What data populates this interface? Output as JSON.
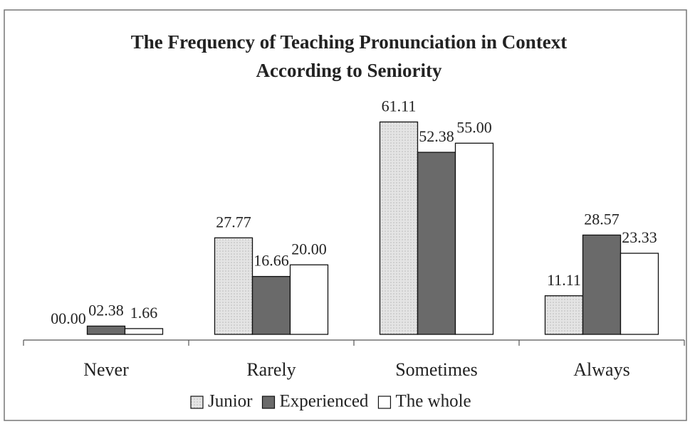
{
  "chart_data": {
    "type": "bar",
    "title": [
      "The Frequency of Teaching Pronunciation in Context",
      "According to Seniority"
    ],
    "categories": [
      "Never",
      "Rarely",
      "Sometimes",
      "Always"
    ],
    "series": [
      {
        "name": "Junior",
        "color": "#dcdcdc",
        "values": [
          0,
          27.77,
          61.11,
          11.11
        ],
        "value_labels": [
          "00.00",
          "27.77",
          "61.11",
          "11.11"
        ]
      },
      {
        "name": "Experienced",
        "color": "#6a6a6a",
        "values": [
          2.38,
          16.66,
          52.38,
          28.57
        ],
        "value_labels": [
          "02.38",
          "16.66",
          "52.38",
          "28.57"
        ]
      },
      {
        "name": "The whole",
        "color": "#ffffff",
        "values": [
          1.66,
          20,
          55,
          23.33
        ],
        "value_labels": [
          "1.66",
          "20.00",
          "55.00",
          "23.33"
        ]
      }
    ],
    "ylim": [
      0,
      70
    ],
    "legend": "bottom"
  }
}
